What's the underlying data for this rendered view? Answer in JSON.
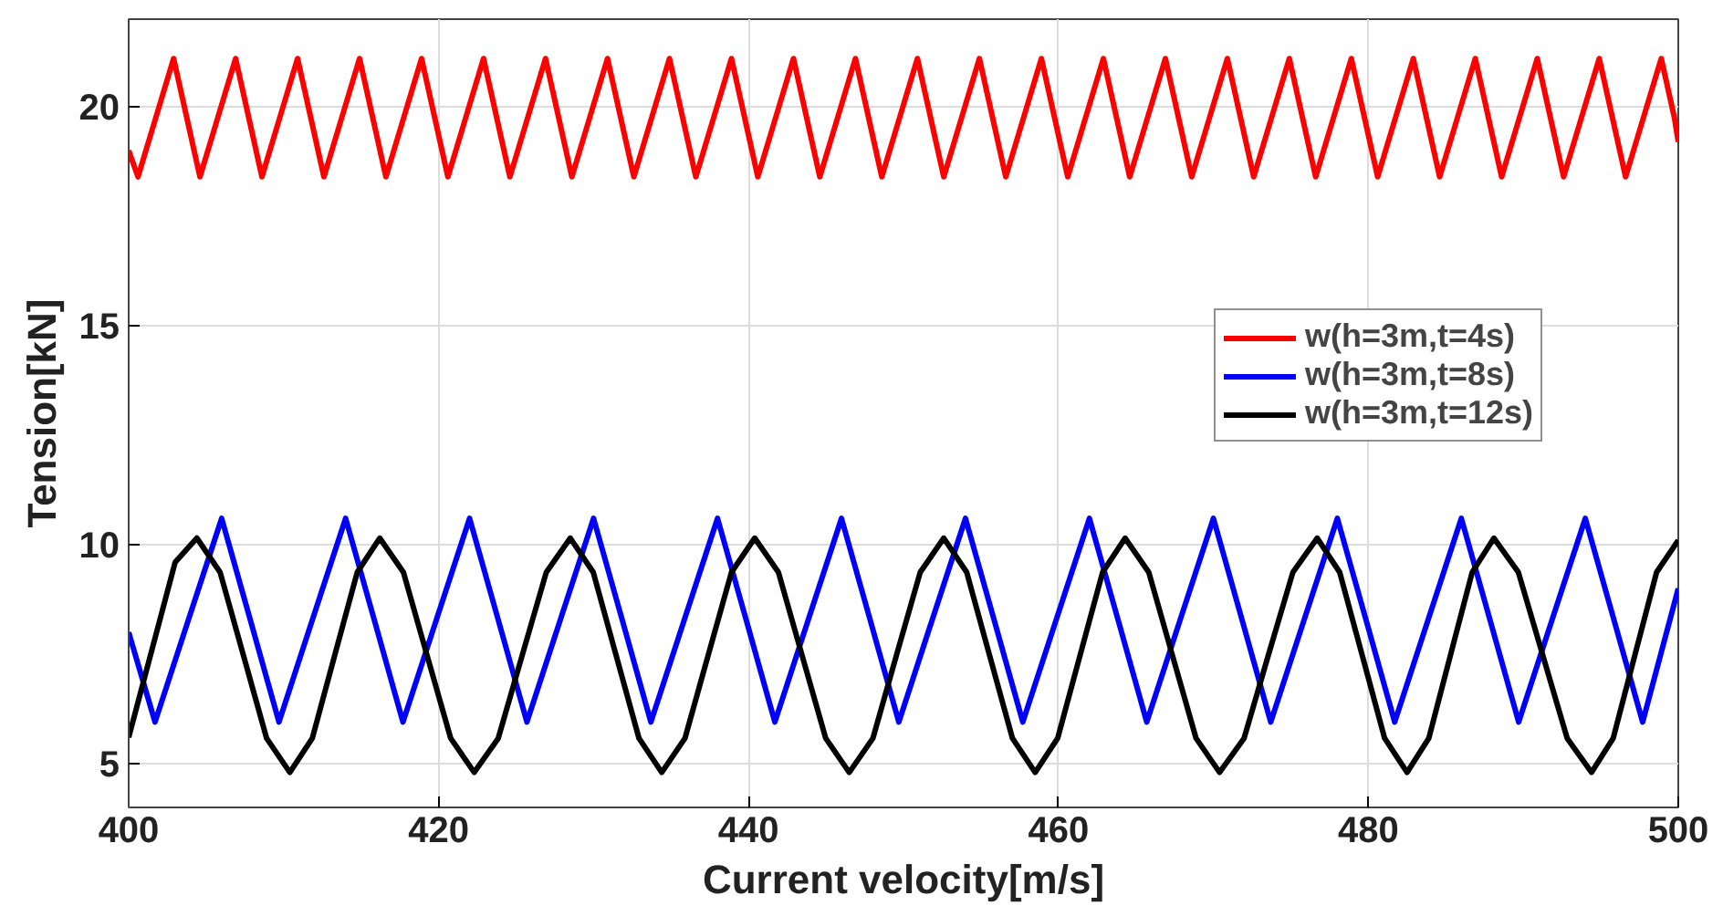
{
  "chart_data": {
    "type": "line",
    "xlabel": "Current velocity[m/s]",
    "ylabel": "Tension[kN]",
    "xlim": [
      400,
      500
    ],
    "ylim": [
      4,
      22
    ],
    "xticks": [
      400,
      420,
      440,
      460,
      480,
      500
    ],
    "yticks": [
      5,
      10,
      15,
      20
    ],
    "grid": true,
    "legend": "top right",
    "line_style": "solid",
    "marker": "none",
    "series": [
      {
        "name": "w(h=3m,t=4s)",
        "color": "#ff0000",
        "x": [
          400,
          400.6,
          401.75,
          402.9,
          403.75,
          404.6,
          405.75,
          406.9,
          407.75,
          408.6,
          409.75,
          410.9,
          411.75,
          412.6,
          413.75,
          414.9,
          415.75,
          416.6,
          417.75,
          418.9,
          419.75,
          420.6,
          421.75,
          422.9,
          423.75,
          424.6,
          425.75,
          426.9,
          427.75,
          428.6,
          429.75,
          430.9,
          431.75,
          432.6,
          433.75,
          434.9,
          435.75,
          436.6,
          437.75,
          438.9,
          439.75,
          440.6,
          441.75,
          442.9,
          443.75,
          444.6,
          445.75,
          446.9,
          447.75,
          448.6,
          449.75,
          450.9,
          451.75,
          452.6,
          453.75,
          454.9,
          455.75,
          456.6,
          457.75,
          458.9,
          459.75,
          460.6,
          461.75,
          462.9,
          463.75,
          464.6,
          465.75,
          466.9,
          467.75,
          468.6,
          469.75,
          470.9,
          471.75,
          472.6,
          473.75,
          474.9,
          475.75,
          476.6,
          477.75,
          478.9,
          479.75,
          480.6,
          481.75,
          482.9,
          483.75,
          484.6,
          485.75,
          486.9,
          487.75,
          488.6,
          489.75,
          490.9,
          491.75,
          492.6,
          493.75,
          494.9,
          495.75,
          496.6,
          497.75,
          498.9,
          499.75,
          500
        ],
        "values": [
          19.0,
          18.4,
          19.75,
          21.1,
          19.75,
          18.4,
          19.75,
          21.1,
          19.75,
          18.4,
          19.75,
          21.1,
          19.75,
          18.4,
          19.75,
          21.1,
          19.75,
          18.4,
          19.75,
          21.1,
          19.75,
          18.4,
          19.75,
          21.1,
          19.75,
          18.4,
          19.75,
          21.1,
          19.75,
          18.4,
          19.75,
          21.1,
          19.75,
          18.4,
          19.75,
          21.1,
          19.75,
          18.4,
          19.75,
          21.1,
          19.75,
          18.4,
          19.75,
          21.1,
          19.75,
          18.4,
          19.75,
          21.1,
          19.75,
          18.4,
          19.75,
          21.1,
          19.75,
          18.4,
          19.75,
          21.1,
          19.75,
          18.4,
          19.75,
          21.1,
          19.75,
          18.4,
          19.75,
          21.1,
          19.75,
          18.4,
          19.75,
          21.1,
          19.75,
          18.4,
          19.75,
          21.1,
          19.75,
          18.4,
          19.75,
          21.1,
          19.75,
          18.4,
          19.75,
          21.1,
          19.75,
          18.4,
          19.75,
          21.1,
          19.75,
          18.4,
          19.75,
          21.1,
          19.75,
          18.4,
          19.75,
          21.1,
          19.75,
          18.4,
          19.75,
          21.1,
          19.75,
          18.4,
          19.75,
          21.1,
          19.75,
          19.2
        ]
      },
      {
        "name": "w(h=3m,t=8s)",
        "color": "#0000ff",
        "x": [
          400,
          401.7,
          403.85,
          406,
          407.85,
          409.7,
          411.85,
          414,
          415.85,
          417.7,
          419.85,
          422,
          423.85,
          425.7,
          427.85,
          430,
          431.85,
          433.7,
          435.85,
          438,
          439.85,
          441.7,
          443.85,
          446,
          447.85,
          449.7,
          451.85,
          454,
          455.85,
          457.7,
          459.85,
          462,
          463.85,
          465.7,
          467.85,
          470,
          471.85,
          473.7,
          475.85,
          478,
          479.85,
          481.7,
          483.85,
          486,
          487.85,
          489.7,
          491.85,
          494,
          495.85,
          497.7,
          500
        ],
        "values": [
          8.0,
          5.95,
          8.28,
          10.6,
          8.28,
          5.95,
          8.28,
          10.6,
          8.28,
          5.95,
          8.28,
          10.6,
          8.28,
          5.95,
          8.28,
          10.6,
          8.28,
          5.95,
          8.28,
          10.6,
          8.28,
          5.95,
          8.28,
          10.6,
          8.28,
          5.95,
          8.28,
          10.6,
          8.28,
          5.95,
          8.28,
          10.6,
          8.28,
          5.95,
          8.28,
          10.6,
          8.28,
          5.95,
          8.28,
          10.6,
          8.28,
          5.95,
          8.28,
          10.6,
          8.28,
          5.95,
          8.28,
          10.6,
          8.28,
          5.95,
          9.0
        ]
      },
      {
        "name": "w(h=3m,t=12s)",
        "color": "#000000",
        "x": [
          400,
          401.5,
          403,
          404.4,
          405.9,
          407.4,
          408.9,
          410.4,
          411.85,
          413.3,
          414.75,
          416.2,
          417.73,
          419.25,
          420.78,
          422.3,
          423.85,
          425.4,
          426.95,
          428.5,
          429.98,
          431.45,
          432.93,
          434.4,
          435.9,
          437.4,
          438.9,
          440.4,
          441.93,
          443.45,
          444.98,
          446.5,
          448.03,
          449.55,
          451.08,
          452.6,
          454.08,
          455.55,
          457.03,
          458.5,
          459.95,
          461.4,
          462.85,
          464.3,
          465.83,
          467.35,
          468.88,
          470.4,
          471.98,
          473.55,
          475.13,
          476.7,
          478.15,
          479.6,
          481.05,
          482.5,
          483.9,
          485.3,
          486.7,
          488.1,
          489.68,
          491.25,
          492.83,
          494.4,
          495.8,
          497.2,
          498.6,
          500
        ],
        "values": [
          5.6,
          7.6,
          9.6,
          10.15,
          9.37,
          7.48,
          5.58,
          4.8,
          5.58,
          7.48,
          9.37,
          10.15,
          9.37,
          7.48,
          5.58,
          4.8,
          5.58,
          7.48,
          9.37,
          10.15,
          9.37,
          7.48,
          5.58,
          4.8,
          5.58,
          7.48,
          9.37,
          10.15,
          9.37,
          7.48,
          5.58,
          4.8,
          5.58,
          7.48,
          9.37,
          10.15,
          9.37,
          7.48,
          5.58,
          4.8,
          5.58,
          7.48,
          9.37,
          10.15,
          9.37,
          7.48,
          5.58,
          4.8,
          5.58,
          7.48,
          9.37,
          10.15,
          9.37,
          7.48,
          5.58,
          4.8,
          5.58,
          7.48,
          9.37,
          10.15,
          9.37,
          7.48,
          5.58,
          4.8,
          5.58,
          7.48,
          9.37,
          10.1
        ]
      }
    ]
  }
}
